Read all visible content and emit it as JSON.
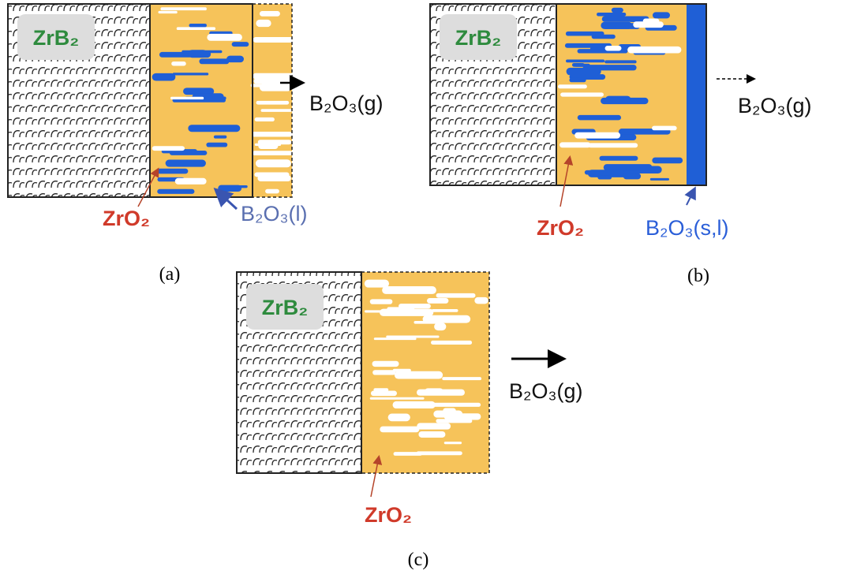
{
  "panels": [
    {
      "caption": "(a)",
      "core_label": "ZrB₂",
      "oxide_label": "ZrO₂",
      "glass_label": "B₂O₃(l)",
      "gas_label": "B₂O₃(g)"
    },
    {
      "caption": "(b)",
      "core_label": "ZrB₂",
      "oxide_label": "ZrO₂",
      "glass_label": "B₂O₃(s,l)",
      "gas_label": "B₂O₃(g)"
    },
    {
      "caption": "(c)",
      "core_label": "ZrB₂",
      "oxide_label": "ZrO₂",
      "gas_label": "B₂O₃(g)"
    }
  ]
}
